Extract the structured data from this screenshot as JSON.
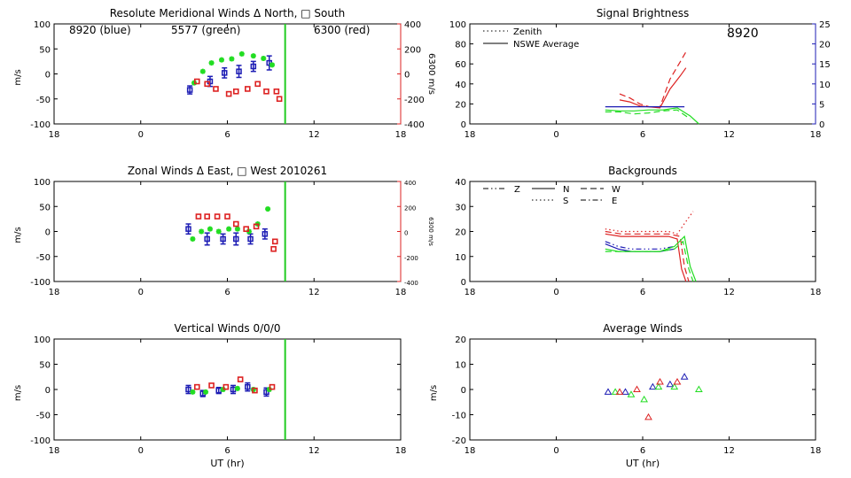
{
  "chart_data": [
    {
      "type": "scatter",
      "title": "Resolute Meridional Winds Δ North, □ South",
      "xlabel": "",
      "ylabel": "m/s",
      "y2label": "6300 m/s",
      "xlim": [
        18,
        42
      ],
      "xticks": [
        "18",
        "0",
        "6",
        "12",
        "18"
      ],
      "ylim": [
        -100,
        100
      ],
      "yticks": [
        "100",
        "50",
        "0",
        "-50",
        "-100"
      ],
      "y2lim": [
        -400,
        400
      ],
      "y2ticks": [
        "400",
        "200",
        "0",
        "-200",
        "-400"
      ],
      "annotations": [
        {
          "text": "8920 (blue)",
          "color": "#1c1cb4"
        },
        {
          "text": "5577 (green)",
          "color": "#22dd22"
        },
        {
          "text": "6300 (red)",
          "color": "#dd2222"
        }
      ],
      "vline": {
        "x": 10.0,
        "color": "#22cc22"
      },
      "series": [
        {
          "color": "#1c1cb4",
          "marker": "errorbar",
          "axis": "left",
          "x": [
            3.4,
            4.8,
            5.8,
            6.8,
            7.8,
            8.9
          ],
          "y": [
            -32,
            -15,
            2,
            5,
            15,
            22
          ],
          "err": [
            8,
            10,
            10,
            12,
            10,
            14
          ]
        },
        {
          "color": "#22dd22",
          "marker": "asterisk",
          "axis": "left",
          "x": [
            3.7,
            4.3,
            4.9,
            5.6,
            6.3,
            7.0,
            7.8,
            8.5,
            9.1
          ],
          "y": [
            -18,
            5,
            22,
            28,
            30,
            40,
            36,
            31,
            18
          ]
        },
        {
          "color": "#dd2222",
          "marker": "square",
          "axis": "right",
          "x": [
            3.9,
            4.6,
            5.2,
            6.1,
            6.6,
            7.4,
            8.1,
            8.7,
            9.4,
            9.6
          ],
          "y": [
            -60,
            -80,
            -120,
            -160,
            -140,
            -120,
            -80,
            -140,
            -140,
            -200
          ]
        }
      ]
    },
    {
      "type": "scatter",
      "title": "Zonal Winds Δ East, □ West 2010261",
      "xlabel": "",
      "ylabel": "m/s",
      "y2label": "6300 m/s",
      "xlim": [
        18,
        42
      ],
      "xticks": [
        "18",
        "0",
        "6",
        "12",
        "18"
      ],
      "ylim": [
        -100,
        100
      ],
      "yticks": [
        "100",
        "50",
        "0",
        "-50",
        "-100"
      ],
      "y2lim": [
        -400,
        400
      ],
      "y2ticks": [
        "400",
        "200",
        "0",
        "-200",
        "-400"
      ],
      "vline": {
        "x": 10.0,
        "color": "#22cc22"
      },
      "series": [
        {
          "color": "#1c1cb4",
          "marker": "errorbar",
          "axis": "left",
          "x": [
            3.3,
            4.6,
            5.7,
            6.6,
            7.6,
            8.6
          ],
          "y": [
            5,
            -15,
            -15,
            -15,
            -15,
            -5
          ],
          "err": [
            10,
            12,
            10,
            12,
            10,
            10
          ]
        },
        {
          "color": "#22dd22",
          "marker": "asterisk",
          "axis": "left",
          "x": [
            3.6,
            4.2,
            4.8,
            5.4,
            6.1,
            6.7,
            7.5,
            8.1,
            8.8
          ],
          "y": [
            -15,
            0,
            5,
            0,
            5,
            5,
            0,
            15,
            45
          ]
        },
        {
          "color": "#dd2222",
          "marker": "square",
          "axis": "right",
          "x": [
            4.0,
            4.6,
            5.3,
            6.0,
            6.6,
            7.3,
            8.0,
            9.2,
            9.3
          ],
          "y": [
            120,
            120,
            120,
            120,
            60,
            20,
            40,
            -140,
            -80
          ]
        }
      ]
    },
    {
      "type": "scatter",
      "title": "Vertical Winds 0/0/0",
      "xlabel": "UT (hr)",
      "ylabel": "m/s",
      "xlim": [
        18,
        42
      ],
      "xticks": [
        "18",
        "0",
        "6",
        "12",
        "18"
      ],
      "ylim": [
        -100,
        100
      ],
      "yticks": [
        "100",
        "50",
        "0",
        "-50",
        "-100"
      ],
      "vline": {
        "x": 10.0,
        "color": "#22cc22"
      },
      "series": [
        {
          "color": "#1c1cb4",
          "marker": "errorbar",
          "axis": "left",
          "x": [
            3.3,
            4.3,
            5.4,
            6.4,
            7.4,
            8.7
          ],
          "y": [
            0,
            -8,
            -2,
            0,
            5,
            -5
          ],
          "err": [
            8,
            6,
            6,
            8,
            8,
            8
          ]
        },
        {
          "color": "#22dd22",
          "marker": "asterisk",
          "axis": "left",
          "x": [
            3.6,
            4.5,
            5.7,
            6.7,
            7.8,
            8.9
          ],
          "y": [
            -5,
            -5,
            0,
            2,
            0,
            0
          ]
        },
        {
          "color": "#dd2222",
          "marker": "square",
          "axis": "left",
          "x": [
            3.9,
            4.9,
            5.9,
            6.9,
            7.9,
            9.1
          ],
          "y": [
            5,
            8,
            5,
            20,
            -2,
            5
          ]
        }
      ]
    },
    {
      "type": "line",
      "title": "Signal Brightness",
      "xlabel": "",
      "xlim": [
        18,
        42
      ],
      "xticks": [
        "18",
        "0",
        "6",
        "12",
        "18"
      ],
      "ylim": [
        0,
        100
      ],
      "yticks": [
        "100",
        "80",
        "60",
        "40",
        "20",
        "0"
      ],
      "y2lim": [
        0,
        25
      ],
      "y2ticks": [
        "25",
        "20",
        "15",
        "10",
        "5",
        "0"
      ],
      "y2color": "#1c1cb4",
      "annotation": {
        "text": "8920",
        "color": "#1c1cb4"
      },
      "legend": [
        {
          "label": "Zenith",
          "style": "dotted"
        },
        {
          "label": "NSWE Average",
          "style": "solid"
        }
      ],
      "legend_position": "top-left",
      "series": [
        {
          "color": "#dd2222",
          "style": "dashed",
          "axis": "left",
          "x": [
            4.4,
            5.1,
            5.8,
            6.5,
            7.2,
            7.9,
            8.6,
            9.0
          ],
          "y": [
            30,
            26,
            20,
            17,
            17,
            45,
            62,
            72
          ]
        },
        {
          "color": "#dd2222",
          "style": "solid",
          "axis": "left",
          "x": [
            4.4,
            5.1,
            5.8,
            6.5,
            7.2,
            7.9,
            8.6,
            9.0
          ],
          "y": [
            24,
            22,
            18,
            17,
            16,
            35,
            48,
            56
          ]
        },
        {
          "color": "#22dd22",
          "style": "dashed",
          "axis": "left",
          "x": [
            3.4,
            4.4,
            5.4,
            6.4,
            7.4,
            8.4,
            9.3
          ],
          "y": [
            12,
            12,
            10,
            11,
            13,
            14,
            5
          ]
        },
        {
          "color": "#22dd22",
          "style": "solid",
          "axis": "left",
          "x": [
            3.4,
            4.4,
            5.4,
            6.4,
            7.4,
            8.4,
            9.3,
            9.9
          ],
          "y": [
            14,
            13,
            13,
            14,
            14,
            16,
            8,
            0
          ]
        },
        {
          "color": "#1c1cb4",
          "style": "solid",
          "axis": "right",
          "x": [
            3.4,
            4.5,
            5.6,
            6.7,
            7.8,
            8.9
          ],
          "y": [
            4.3,
            4.3,
            4.3,
            4.3,
            4.3,
            4.3
          ]
        }
      ]
    },
    {
      "type": "line",
      "title": "Backgrounds",
      "xlabel": "",
      "xlim": [
        18,
        42
      ],
      "xticks": [
        "18",
        "0",
        "6",
        "12",
        "18"
      ],
      "ylim": [
        0,
        40
      ],
      "yticks": [
        "40",
        "30",
        "20",
        "10",
        "0"
      ],
      "legend": [
        {
          "label": "Z",
          "style": "dashdotdot"
        },
        {
          "label": "N",
          "style": "solid"
        },
        {
          "label": "W",
          "style": "dashed"
        },
        {
          "label": "S",
          "style": "dotted"
        },
        {
          "label": "E",
          "style": "dashdot"
        }
      ],
      "legend_position": "top-left",
      "series": [
        {
          "color": "#dd2222",
          "style": "dotted",
          "x": [
            3.4,
            4.5,
            5.6,
            6.7,
            7.8,
            8.4,
            9.0,
            9.5
          ],
          "y": [
            21,
            20,
            20,
            20,
            20,
            19,
            24,
            28
          ]
        },
        {
          "color": "#dd2222",
          "style": "solid",
          "x": [
            3.4,
            4.5,
            5.6,
            6.7,
            7.8,
            8.4,
            8.7,
            9.0
          ],
          "y": [
            19,
            18,
            18,
            18,
            18,
            17,
            5,
            0
          ]
        },
        {
          "color": "#dd2222",
          "style": "dashed",
          "x": [
            3.4,
            4.5,
            5.6,
            6.7,
            7.8,
            8.6,
            8.9,
            9.2
          ],
          "y": [
            20,
            19,
            19,
            19,
            19,
            18,
            6,
            0
          ]
        },
        {
          "color": "#1c1cb4",
          "style": "solid",
          "x": [
            3.4,
            4.3,
            5.2,
            6.2,
            7.2,
            8.2
          ],
          "y": [
            15,
            13,
            12,
            12,
            12,
            13
          ]
        },
        {
          "color": "#1c1cb4",
          "style": "dashdotdot",
          "x": [
            3.4,
            4.3,
            5.2,
            6.2,
            7.2,
            8.2
          ],
          "y": [
            16,
            14,
            13,
            13,
            13,
            14
          ]
        },
        {
          "color": "#22dd22",
          "style": "solid",
          "x": [
            3.4,
            4.3,
            5.2,
            6.2,
            7.2,
            8.2,
            8.9,
            9.3,
            9.7
          ],
          "y": [
            13,
            12,
            12,
            12,
            12,
            14,
            18,
            6,
            0
          ]
        },
        {
          "color": "#22dd22",
          "style": "dashed",
          "x": [
            3.4,
            4.3,
            5.2,
            6.2,
            7.2,
            8.2,
            8.8,
            9.2,
            9.5
          ],
          "y": [
            12,
            12,
            12,
            12,
            12,
            13,
            16,
            5,
            0
          ]
        }
      ]
    },
    {
      "type": "scatter",
      "title": "Average Winds",
      "xlabel": "UT (hr)",
      "ylabel": "m/s",
      "xlim": [
        18,
        42
      ],
      "xticks": [
        "18",
        "0",
        "6",
        "12",
        "18"
      ],
      "ylim": [
        -20,
        20
      ],
      "yticks": [
        "20",
        "10",
        "0",
        "-10",
        "-20"
      ],
      "series": [
        {
          "color": "#1c1cb4",
          "marker": "triangle",
          "x": [
            3.6,
            4.8,
            6.7,
            7.9,
            8.9
          ],
          "y": [
            -1,
            -1,
            1,
            2,
            5
          ]
        },
        {
          "color": "#22dd22",
          "marker": "triangle",
          "x": [
            4.1,
            5.2,
            6.1,
            7.1,
            8.2,
            9.9
          ],
          "y": [
            -1,
            -2,
            -4,
            1,
            1,
            0
          ]
        },
        {
          "color": "#dd2222",
          "marker": "triangle",
          "x": [
            4.4,
            5.6,
            6.4,
            7.2,
            8.4
          ],
          "y": [
            -1,
            0,
            -11,
            3,
            3
          ]
        }
      ]
    }
  ]
}
